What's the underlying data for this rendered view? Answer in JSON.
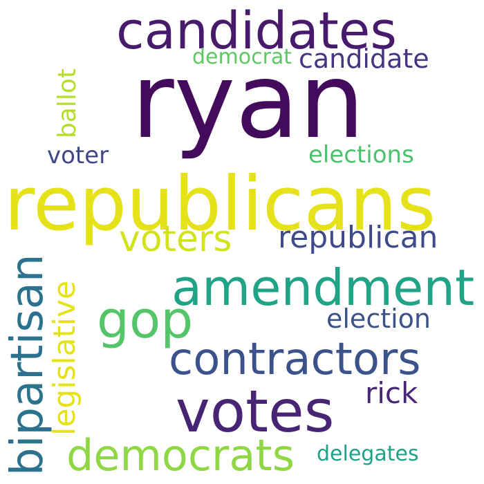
{
  "word_cloud": {
    "words": [
      {
        "text": "ryan",
        "color": "#440a5b",
        "orientation": "horizontal"
      },
      {
        "text": "republicans",
        "color": "#e6e21a",
        "orientation": "horizontal"
      },
      {
        "text": "candidates",
        "color": "#481a6c",
        "orientation": "horizontal"
      },
      {
        "text": "votes",
        "color": "#482475",
        "orientation": "horizontal"
      },
      {
        "text": "amendment",
        "color": "#20a386",
        "orientation": "horizontal"
      },
      {
        "text": "contractors",
        "color": "#3b528b",
        "orientation": "horizontal"
      },
      {
        "text": "bipartisan",
        "color": "#2c728e",
        "orientation": "vertical"
      },
      {
        "text": "democrats",
        "color": "#8fd744",
        "orientation": "horizontal"
      },
      {
        "text": "gop",
        "color": "#54c568",
        "orientation": "horizontal"
      },
      {
        "text": "voters",
        "color": "#d2e21b",
        "orientation": "horizontal"
      },
      {
        "text": "republican",
        "color": "#3e4a89",
        "orientation": "horizontal"
      },
      {
        "text": "legislative",
        "color": "#e5e21a",
        "orientation": "vertical"
      },
      {
        "text": "candidate",
        "color": "#463480",
        "orientation": "horizontal"
      },
      {
        "text": "election",
        "color": "#3b528b",
        "orientation": "horizontal"
      },
      {
        "text": "ballot",
        "color": "#b5de2b",
        "orientation": "vertical"
      },
      {
        "text": "elections",
        "color": "#4ac16d",
        "orientation": "horizontal"
      },
      {
        "text": "rick",
        "color": "#482677",
        "orientation": "horizontal"
      },
      {
        "text": "voter",
        "color": "#3f4788",
        "orientation": "horizontal"
      },
      {
        "text": "democrat",
        "color": "#5ec962",
        "orientation": "horizontal"
      },
      {
        "text": "delegates",
        "color": "#1fa088",
        "orientation": "horizontal"
      }
    ]
  }
}
